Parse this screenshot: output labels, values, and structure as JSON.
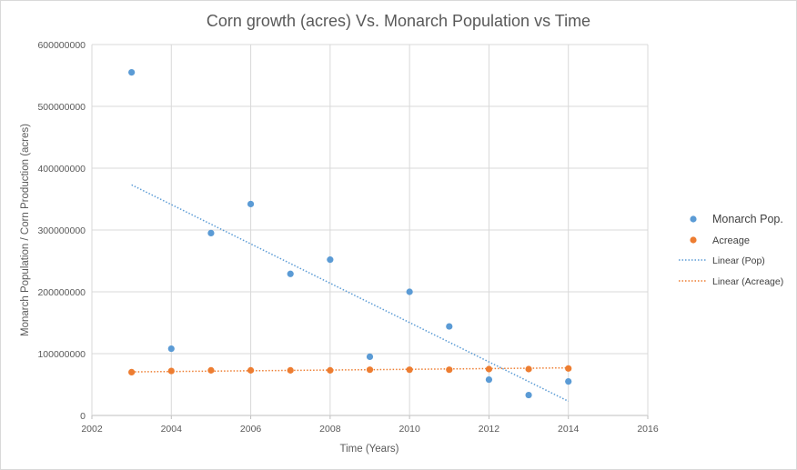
{
  "chart_data": {
    "type": "scatter",
    "title": "Corn growth (acres) Vs. Monarch Population vs Time",
    "xlabel": "Time (Years)",
    "ylabel": "Monarch Population / Corn Production (acres)",
    "xlim": [
      2002,
      2016
    ],
    "ylim": [
      0,
      600000000
    ],
    "x_ticks": [
      "2002",
      "2004",
      "2006",
      "2008",
      "2010",
      "2012",
      "2014",
      "2016"
    ],
    "y_ticks": [
      "0",
      "100000000",
      "200000000",
      "300000000",
      "400000000",
      "500000000",
      "600000000"
    ],
    "grid": true,
    "legend_position": "right",
    "series": [
      {
        "name": "Monarch Pop.",
        "color": "#5b9bd5",
        "x": [
          2003,
          2004,
          2005,
          2006,
          2007,
          2008,
          2009,
          2010,
          2011,
          2012,
          2013,
          2014
        ],
        "y": [
          555000000,
          108000000,
          295000000,
          342000000,
          229000000,
          252000000,
          95000000,
          200000000,
          144000000,
          58000000,
          33000000,
          55000000
        ]
      },
      {
        "name": "Acreage",
        "color": "#ed7d31",
        "x": [
          2003,
          2004,
          2005,
          2006,
          2007,
          2008,
          2009,
          2010,
          2011,
          2012,
          2013,
          2014
        ],
        "y": [
          70000000,
          72000000,
          73000000,
          73000000,
          73000000,
          73000000,
          74000000,
          74000000,
          74000000,
          75000000,
          75000000,
          76000000
        ]
      }
    ],
    "trendlines": [
      {
        "name": "Linear (Pop)",
        "color": "#5b9bd5",
        "x": [
          2003,
          2014
        ],
        "y": [
          373000000,
          23000000
        ]
      },
      {
        "name": "Linear (Acreage)",
        "color": "#ed7d31",
        "x": [
          2003,
          2014
        ],
        "y": [
          70500000,
          77000000
        ]
      }
    ]
  }
}
